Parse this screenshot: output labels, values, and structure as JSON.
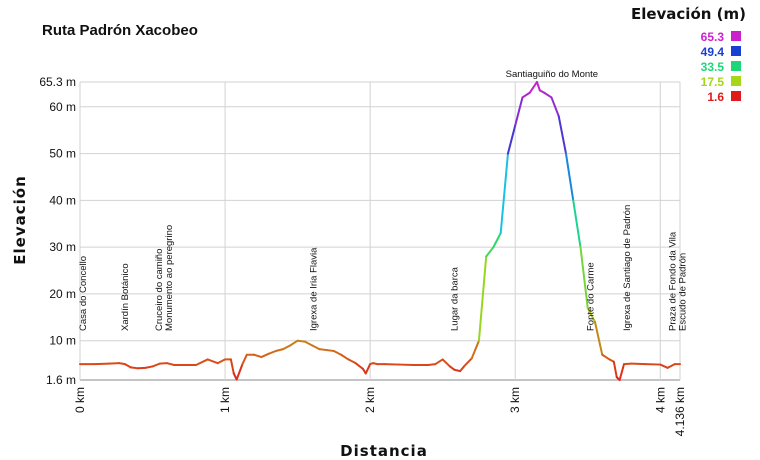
{
  "chart_data": {
    "type": "line",
    "title": "Ruta Padrón Xacobeo",
    "xlabel": "Distancia",
    "ylabel": "Elevación",
    "xlim": [
      0,
      4.136
    ],
    "ylim": [
      1.6,
      65.3
    ],
    "x_ticks": [
      {
        "value": 0,
        "label": "0 km"
      },
      {
        "value": 1,
        "label": "1 km"
      },
      {
        "value": 2,
        "label": "2 km"
      },
      {
        "value": 3,
        "label": "3 km"
      },
      {
        "value": 4,
        "label": "4 km"
      },
      {
        "value": 4.136,
        "label": "4.136 km"
      }
    ],
    "y_ticks": [
      {
        "value": 1.6,
        "label": "1.6 m"
      },
      {
        "value": 10,
        "label": "10 m"
      },
      {
        "value": 20,
        "label": "20 m"
      },
      {
        "value": 30,
        "label": "30 m"
      },
      {
        "value": 40,
        "label": "40 m"
      },
      {
        "value": 50,
        "label": "50 m"
      },
      {
        "value": 60,
        "label": "60 m"
      },
      {
        "value": 65.3,
        "label": "65.3 m"
      }
    ],
    "grid": true,
    "legend": {
      "title": "Elevación (m)",
      "placement": "top-right",
      "entries": [
        {
          "value": "65.3",
          "color": "#cc22cc"
        },
        {
          "value": "49.4",
          "color": "#1a3fd4"
        },
        {
          "value": "33.5",
          "color": "#1ed67a"
        },
        {
          "value": "17.5",
          "color": "#a6d617"
        },
        {
          "value": "1.6",
          "color": "#e01a1a"
        }
      ]
    },
    "points_of_interest": [
      {
        "x": 0.02,
        "lines": [
          "Casa do Concello"
        ]
      },
      {
        "x": 0.31,
        "lines": [
          "Xardín Botánico"
        ]
      },
      {
        "x": 0.58,
        "lines": [
          "Cruceiro do camiño",
          "Monumento ao peregrino"
        ]
      },
      {
        "x": 1.61,
        "lines": [
          "Igrexa de Iria Flavia"
        ]
      },
      {
        "x": 2.58,
        "lines": [
          "Lugar da barca"
        ]
      },
      {
        "x": 3.52,
        "lines": [
          "Fonte do Carme"
        ]
      },
      {
        "x": 3.77,
        "lines": [
          "Igrexa de Santiago de Padrón"
        ]
      },
      {
        "x": 4.12,
        "lines": [
          "Praza de Fondo da Vila",
          "Escudo de Padrón"
        ]
      }
    ],
    "summit_label": {
      "x": 3.17,
      "y": 65.3,
      "text": "Santiaguiño do Monte"
    },
    "series": [
      {
        "x": [
          0,
          0.1,
          0.2,
          0.27,
          0.31,
          0.35,
          0.4,
          0.45,
          0.5,
          0.55,
          0.6,
          0.65,
          0.7,
          0.8,
          0.88,
          0.95,
          1.0,
          1.04,
          1.06,
          1.08,
          1.12,
          1.15,
          1.2,
          1.25,
          1.3,
          1.35,
          1.4,
          1.45,
          1.5,
          1.55,
          1.6,
          1.65,
          1.7,
          1.75,
          1.8,
          1.85,
          1.9,
          1.95,
          1.97,
          2.0,
          2.02,
          2.05,
          2.1,
          2.2,
          2.3,
          2.4,
          2.45,
          2.5,
          2.55,
          2.58,
          2.62,
          2.65,
          2.7,
          2.75,
          2.8,
          2.85,
          2.9,
          2.95,
          3.0,
          3.05,
          3.1,
          3.15,
          3.17,
          3.2,
          3.25,
          3.3,
          3.35,
          3.4,
          3.45,
          3.5,
          3.55,
          3.6,
          3.65,
          3.68,
          3.7,
          3.72,
          3.75,
          3.8,
          3.9,
          4.0,
          4.05,
          4.1,
          4.136
        ],
        "values": [
          5.0,
          5.0,
          5.1,
          5.2,
          5.0,
          4.3,
          4.1,
          4.2,
          4.5,
          5.1,
          5.2,
          4.8,
          4.8,
          4.8,
          6.0,
          5.2,
          6.0,
          6.0,
          3.0,
          1.7,
          5.0,
          7.0,
          7.0,
          6.5,
          7.2,
          7.8,
          8.2,
          9.0,
          10.0,
          9.8,
          9.0,
          8.2,
          8.0,
          7.8,
          7.0,
          6.0,
          5.2,
          4.0,
          3.0,
          5.0,
          5.2,
          5.0,
          5.0,
          4.9,
          4.8,
          4.8,
          5.0,
          6.0,
          4.5,
          3.8,
          3.5,
          4.6,
          6.2,
          10.0,
          28.0,
          30.0,
          33.0,
          50.0,
          56.0,
          62.0,
          63.0,
          65.3,
          63.5,
          63.0,
          62.0,
          58.0,
          50.0,
          40.0,
          30.0,
          17.0,
          14.0,
          7.0,
          6.0,
          5.5,
          2.2,
          1.6,
          5.0,
          5.1,
          5.0,
          4.9,
          4.2,
          5.0,
          5.0
        ]
      }
    ]
  }
}
